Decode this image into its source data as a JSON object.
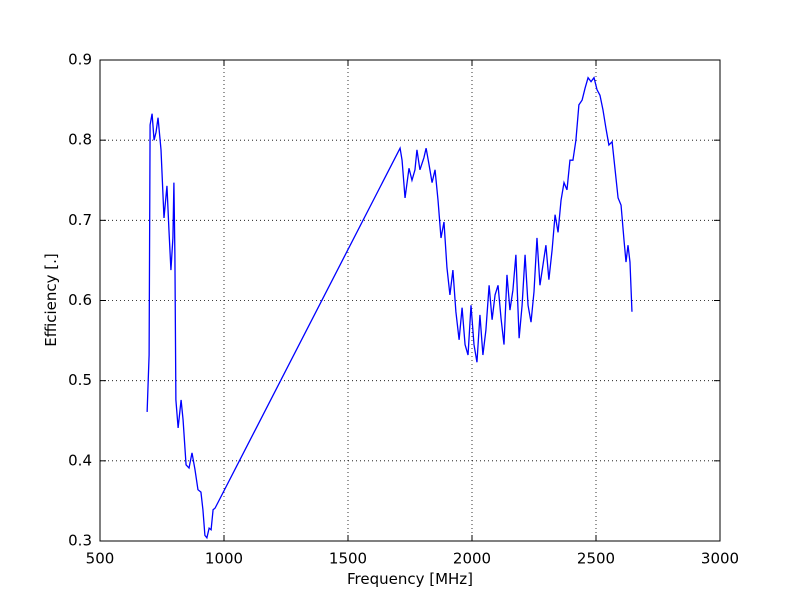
{
  "chart_data": {
    "type": "line",
    "xlabel": "Frequency [MHz]",
    "ylabel": "Efficiency [.]",
    "xlim": [
      500,
      3000
    ],
    "xticks": [
      500,
      1000,
      1500,
      2000,
      2500,
      3000
    ],
    "ylim": [
      0.3,
      0.9
    ],
    "yticks": [
      0.3,
      0.4,
      0.5,
      0.6,
      0.7,
      0.8,
      0.9
    ],
    "grid": true,
    "series": [
      {
        "color": "#0000ff",
        "x": [
          690,
          698,
          702,
          710,
          718,
          726,
          734,
          746,
          758,
          770,
          778,
          786,
          794,
          798,
          802,
          806,
          815,
          827,
          835,
          847,
          859,
          871,
          883,
          895,
          907,
          915,
          923,
          931,
          940,
          948,
          956,
          964,
          1710,
          1718,
          1730,
          1746,
          1758,
          1770,
          1778,
          1790,
          1806,
          1815,
          1827,
          1839,
          1851,
          1863,
          1875,
          1887,
          1899,
          1911,
          1923,
          1935,
          1948,
          1960,
          1972,
          1984,
          1996,
          2008,
          2020,
          2032,
          2044,
          2056,
          2069,
          2081,
          2093,
          2105,
          2117,
          2129,
          2141,
          2153,
          2165,
          2177,
          2190,
          2202,
          2214,
          2226,
          2238,
          2250,
          2262,
          2274,
          2286,
          2298,
          2310,
          2323,
          2335,
          2347,
          2359,
          2371,
          2383,
          2395,
          2407,
          2419,
          2431,
          2444,
          2456,
          2468,
          2480,
          2492,
          2504,
          2516,
          2528,
          2540,
          2552,
          2565,
          2577,
          2589,
          2601,
          2613,
          2621,
          2629,
          2637,
          2645
        ],
        "values": [
          0.461,
          0.532,
          0.819,
          0.833,
          0.8,
          0.81,
          0.828,
          0.788,
          0.703,
          0.743,
          0.688,
          0.638,
          0.678,
          0.747,
          0.657,
          0.476,
          0.441,
          0.476,
          0.451,
          0.395,
          0.391,
          0.41,
          0.389,
          0.364,
          0.361,
          0.339,
          0.307,
          0.304,
          0.316,
          0.314,
          0.339,
          0.341,
          0.79,
          0.775,
          0.728,
          0.765,
          0.75,
          0.763,
          0.788,
          0.763,
          0.778,
          0.79,
          0.769,
          0.747,
          0.763,
          0.725,
          0.678,
          0.698,
          0.641,
          0.607,
          0.638,
          0.586,
          0.551,
          0.591,
          0.545,
          0.532,
          0.594,
          0.545,
          0.523,
          0.582,
          0.532,
          0.563,
          0.619,
          0.576,
          0.607,
          0.619,
          0.578,
          0.545,
          0.632,
          0.588,
          0.613,
          0.657,
          0.553,
          0.594,
          0.657,
          0.594,
          0.573,
          0.611,
          0.678,
          0.619,
          0.644,
          0.669,
          0.626,
          0.663,
          0.707,
          0.685,
          0.725,
          0.747,
          0.738,
          0.775,
          0.775,
          0.8,
          0.844,
          0.85,
          0.865,
          0.878,
          0.873,
          0.878,
          0.863,
          0.856,
          0.838,
          0.815,
          0.794,
          0.798,
          0.763,
          0.728,
          0.719,
          0.675,
          0.648,
          0.669,
          0.648,
          0.586
        ]
      }
    ]
  }
}
